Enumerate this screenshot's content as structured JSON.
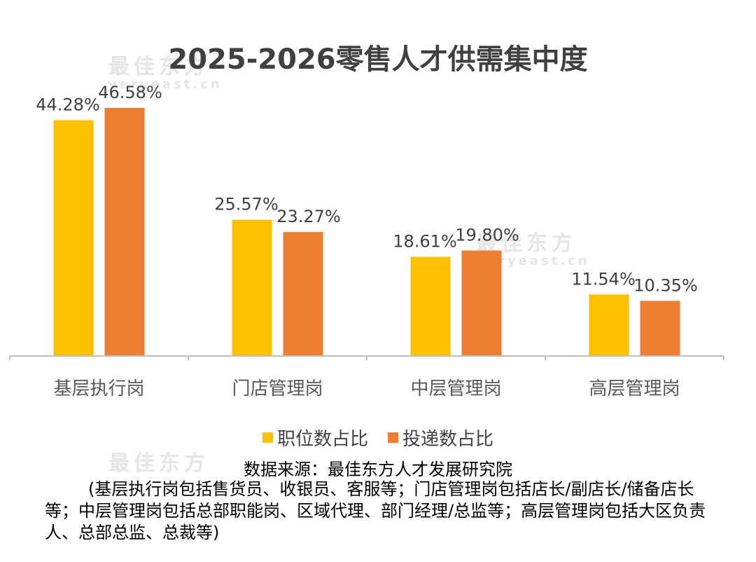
{
  "watermark": {
    "brand": "最佳东方",
    "site": "veryeast.cn"
  },
  "chart_data": {
    "type": "bar",
    "title": "2025-2026零售人才供需集中度",
    "categories": [
      "基层执行岗",
      "门店管理岗",
      "中层管理岗",
      "高层管理岗"
    ],
    "series": [
      {
        "name": "职位数占比",
        "color": "#FFC000",
        "values": [
          44.28,
          25.57,
          18.61,
          11.54
        ],
        "labels": [
          "44.28%",
          "25.57%",
          "18.61%",
          "11.54%"
        ]
      },
      {
        "name": "投递数占比",
        "color": "#ED7D31",
        "values": [
          46.58,
          23.27,
          19.8,
          10.35
        ],
        "labels": [
          "46.58%",
          "23.27%",
          "19.80%",
          "10.35%"
        ]
      }
    ],
    "ylim": [
      0,
      50
    ],
    "grid": false,
    "legend_position": "bottom"
  },
  "source": "数据来源：最佳东方人才发展研究院",
  "note": "(基层执行岗包括售货员、收银员、客服等；门店管理岗包括店长/副店长/储备店长等；中层管理岗包括总部职能岗、区域代理、部门经理/总监等；高层管理岗包括大区负责人、总部总监、总裁等)"
}
